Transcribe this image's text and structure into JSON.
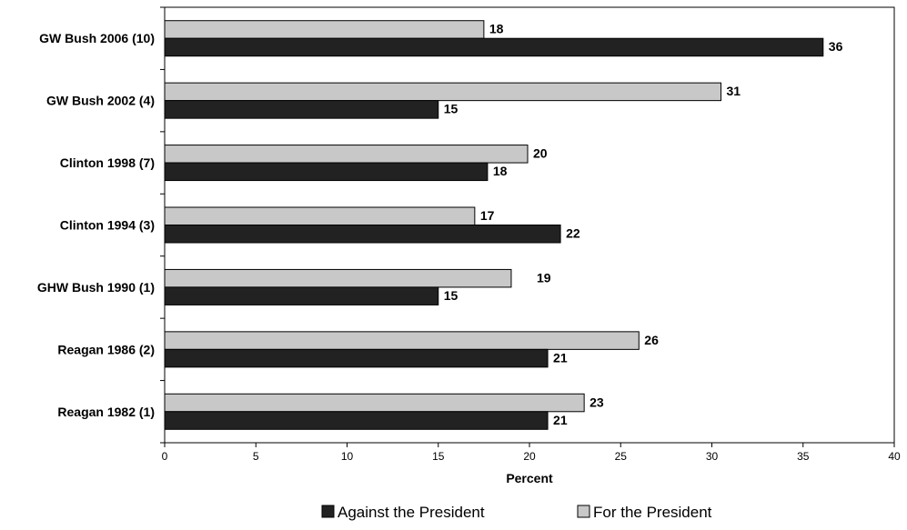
{
  "chart_data": {
    "type": "bar",
    "orientation": "horizontal",
    "title": "",
    "xlabel": "Percent",
    "ylabel": "",
    "xlim": [
      0,
      40
    ],
    "x_ticks": [
      0,
      5,
      10,
      15,
      20,
      25,
      30,
      35,
      40
    ],
    "grid": false,
    "legend_position": "bottom",
    "categories": [
      "GW Bush  2006 (10)",
      "GW Bush  2002 (4)",
      "Clinton 1998 (7)",
      "Clinton 1994 (3)",
      "GHW Bush 1990 (1)",
      "Reagan 1986 (2)",
      "Reagan 1982 (1)"
    ],
    "series": [
      {
        "name": "For the President",
        "color": "#c8c8c8",
        "values": [
          17.5,
          30.5,
          19.9,
          17.0,
          19.0,
          26.0,
          23.0
        ],
        "labels": [
          "18",
          "31",
          "20",
          "17",
          "19",
          "26",
          "23"
        ]
      },
      {
        "name": "Against the President",
        "color": "#222222",
        "values": [
          36.1,
          15.0,
          17.7,
          21.7,
          15.0,
          21.0,
          21.0
        ],
        "labels": [
          "36",
          "15",
          "18",
          "22",
          "15",
          "21",
          "21"
        ]
      }
    ],
    "legend": [
      {
        "label": "Against the President",
        "color": "#222222"
      },
      {
        "label": "For the President",
        "color": "#c8c8c8"
      }
    ]
  }
}
